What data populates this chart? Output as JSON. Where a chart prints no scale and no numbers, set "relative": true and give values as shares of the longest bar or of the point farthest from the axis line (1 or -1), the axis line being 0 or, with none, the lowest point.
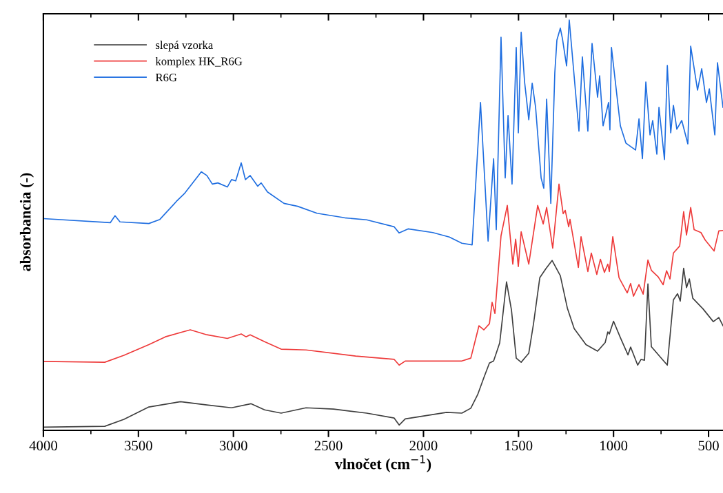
{
  "chart_data": {
    "type": "line",
    "xlabel": "vlnočet (cm$^{−1}$)",
    "ylabel": "absorbancia (-)",
    "relative": true,
    "xlim": [
      4000,
      424
    ],
    "xticks": [
      4000,
      {
        "value": 3750,
        "label": null
      },
      3500,
      {
        "value": 3250,
        "label": null
      },
      3000,
      {
        "value": 2750,
        "label": null
      },
      2500,
      {
        "value": 2250,
        "label": null
      },
      2000,
      {
        "value": 1750,
        "label": null
      },
      1500,
      {
        "value": 1250,
        "label": null
      },
      1000,
      {
        "value": 750,
        "label": null
      },
      500
    ],
    "legend": "top left",
    "grid": false,
    "tick_labels": "x",
    "series": [
      {
        "name": "slepá vzorka",
        "color": "#3f3f3f",
        "x": [
          4000,
          3677,
          3576,
          3445,
          3278,
          3140,
          3010,
          2908,
          2836,
          2749,
          2618,
          2473,
          2299,
          2154,
          2128,
          2096,
          1878,
          1798,
          1751,
          1715,
          1682,
          1653,
          1631,
          1599,
          1563,
          1537,
          1512,
          1486,
          1446,
          1421,
          1388,
          1356,
          1323,
          1280,
          1243,
          1207,
          1145,
          1084,
          1044,
          1030,
          1022,
          1000,
          964,
          924,
          910,
          873,
          855,
          837,
          819,
          801,
          758,
          717,
          685,
          663,
          649,
          631,
          616,
          601,
          583,
          529,
          475,
          446,
          424
        ],
        "values": [
          0.008,
          0.01,
          0.027,
          0.057,
          0.07,
          0.062,
          0.055,
          0.065,
          0.05,
          0.042,
          0.055,
          0.052,
          0.042,
          0.03,
          0.013,
          0.028,
          0.044,
          0.042,
          0.054,
          0.087,
          0.129,
          0.164,
          0.169,
          0.213,
          0.362,
          0.293,
          0.176,
          0.166,
          0.188,
          0.26,
          0.372,
          0.394,
          0.414,
          0.377,
          0.298,
          0.248,
          0.209,
          0.193,
          0.214,
          0.24,
          0.235,
          0.266,
          0.226,
          0.184,
          0.203,
          0.159,
          0.173,
          0.171,
          0.357,
          0.204,
          0.181,
          0.159,
          0.318,
          0.333,
          0.315,
          0.395,
          0.348,
          0.369,
          0.322,
          0.296,
          0.265,
          0.275,
          0.255
        ]
      },
      {
        "name": "komplex HK_R6G",
        "color": "#ee3a3a",
        "x": [
          4000,
          3677,
          3576,
          3445,
          3358,
          3227,
          3140,
          3032,
          2959,
          2934,
          2912,
          2836,
          2749,
          2618,
          2357,
          2154,
          2128,
          2096,
          1798,
          1751,
          1708,
          1682,
          1653,
          1639,
          1624,
          1592,
          1559,
          1530,
          1515,
          1501,
          1486,
          1446,
          1399,
          1370,
          1352,
          1320,
          1287,
          1265,
          1254,
          1236,
          1229,
          1185,
          1171,
          1135,
          1117,
          1088,
          1069,
          1048,
          1030,
          1022,
          1004,
          971,
          928,
          910,
          895,
          866,
          844,
          819,
          801,
          765,
          739,
          721,
          703,
          685,
          652,
          631,
          616,
          594,
          576,
          540,
          518,
          471,
          446,
          424
        ],
        "values": [
          0.168,
          0.166,
          0.183,
          0.209,
          0.228,
          0.245,
          0.233,
          0.224,
          0.235,
          0.228,
          0.233,
          0.216,
          0.198,
          0.196,
          0.181,
          0.173,
          0.159,
          0.169,
          0.169,
          0.176,
          0.255,
          0.245,
          0.26,
          0.312,
          0.285,
          0.474,
          0.548,
          0.405,
          0.466,
          0.399,
          0.484,
          0.405,
          0.548,
          0.503,
          0.543,
          0.444,
          0.6,
          0.528,
          0.536,
          0.496,
          0.514,
          0.397,
          0.472,
          0.387,
          0.432,
          0.38,
          0.417,
          0.385,
          0.405,
          0.387,
          0.472,
          0.372,
          0.335,
          0.358,
          0.327,
          0.355,
          0.332,
          0.415,
          0.39,
          0.374,
          0.355,
          0.389,
          0.369,
          0.432,
          0.449,
          0.533,
          0.476,
          0.543,
          0.489,
          0.482,
          0.464,
          0.437,
          0.486,
          0.487
        ]
      },
      {
        "name": "R6G",
        "color": "#1f6ee0",
        "x": [
          4000,
          3648,
          3623,
          3597,
          3445,
          3387,
          3300,
          3256,
          3169,
          3140,
          3111,
          3082,
          3032,
          3010,
          2988,
          2959,
          2937,
          2912,
          2872,
          2854,
          2821,
          2734,
          2662,
          2560,
          2415,
          2299,
          2154,
          2128,
          2081,
          1951,
          1864,
          1798,
          1744,
          1700,
          1660,
          1631,
          1617,
          1592,
          1570,
          1555,
          1534,
          1512,
          1501,
          1486,
          1468,
          1446,
          1428,
          1410,
          1381,
          1367,
          1352,
          1330,
          1309,
          1298,
          1280,
          1269,
          1247,
          1233,
          1182,
          1164,
          1135,
          1113,
          1084,
          1073,
          1055,
          1026,
          1019,
          1011,
          964,
          935,
          884,
          866,
          848,
          830,
          808,
          794,
          772,
          761,
          732,
          717,
          699,
          685,
          667,
          641,
          609,
          594,
          558,
          536,
          511,
          496,
          467,
          453,
          424
        ],
        "values": [
          0.516,
          0.506,
          0.523,
          0.508,
          0.504,
          0.514,
          0.558,
          0.578,
          0.63,
          0.621,
          0.6,
          0.603,
          0.593,
          0.611,
          0.608,
          0.652,
          0.611,
          0.621,
          0.595,
          0.603,
          0.581,
          0.553,
          0.546,
          0.529,
          0.518,
          0.513,
          0.496,
          0.481,
          0.491,
          0.482,
          0.471,
          0.456,
          0.452,
          0.799,
          0.461,
          0.662,
          0.489,
          0.958,
          0.615,
          0.767,
          0.6,
          0.933,
          0.725,
          0.97,
          0.849,
          0.757,
          0.846,
          0.787,
          0.615,
          0.59,
          0.807,
          0.553,
          0.871,
          0.951,
          0.98,
          0.955,
          0.888,
          1,
          0.729,
          0.91,
          0.729,
          0.943,
          0.812,
          0.864,
          0.742,
          0.799,
          0.732,
          0.933,
          0.742,
          0.7,
          0.683,
          0.759,
          0.662,
          0.849,
          0.72,
          0.755,
          0.673,
          0.787,
          0.66,
          0.889,
          0.725,
          0.792,
          0.734,
          0.755,
          0.698,
          0.936,
          0.829,
          0.881,
          0.799,
          0.832,
          0.72,
          0.896,
          0.787
        ]
      }
    ]
  }
}
